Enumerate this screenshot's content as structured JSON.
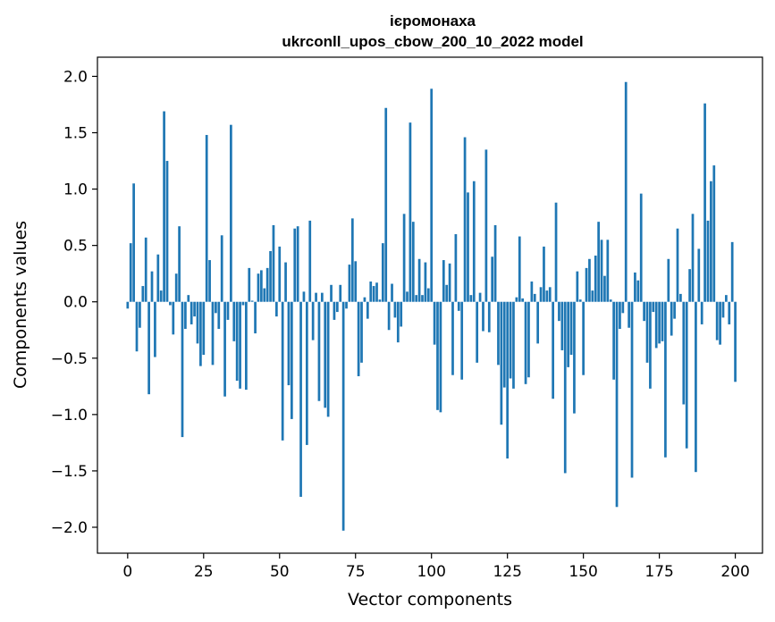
{
  "chart_data": {
    "type": "bar",
    "title": "ієромонаха",
    "subtitle": "ukrconll_upos_cbow_200_10_2022 model",
    "xlabel": "Vector components",
    "ylabel": "Components values",
    "xlim": [
      -9.95,
      208.95
    ],
    "ylim": [
      -2.23,
      2.17
    ],
    "xticks": [
      0,
      25,
      50,
      75,
      100,
      125,
      150,
      175,
      200
    ],
    "xtick_labels": [
      "0",
      "25",
      "50",
      "75",
      "100",
      "125",
      "150",
      "175",
      "200"
    ],
    "yticks": [
      -2.0,
      -1.5,
      -1.0,
      -0.5,
      0.0,
      0.5,
      1.0,
      1.5,
      2.0
    ],
    "ytick_labels": [
      "−2.0",
      "−1.5",
      "−1.0",
      "−0.5",
      "0.0",
      "0.5",
      "1.0",
      "1.5",
      "2.0"
    ],
    "grid": false,
    "bar_color": "#1f77b4",
    "values": [
      -0.06,
      0.52,
      1.05,
      -0.44,
      -0.23,
      0.14,
      0.57,
      -0.82,
      0.27,
      -0.49,
      0.42,
      0.1,
      1.69,
      1.25,
      -0.03,
      -0.29,
      0.25,
      0.67,
      -1.2,
      -0.24,
      0.06,
      -0.2,
      -0.13,
      -0.37,
      -0.57,
      -0.47,
      1.48,
      0.37,
      -0.56,
      -0.1,
      -0.24,
      0.59,
      -0.84,
      -0.16,
      1.57,
      -0.35,
      -0.7,
      -0.77,
      -0.03,
      -0.78,
      0.3,
      0.01,
      -0.28,
      0.25,
      0.28,
      0.12,
      0.3,
      0.45,
      0.68,
      -0.13,
      0.49,
      -1.23,
      0.35,
      -0.74,
      -1.04,
      0.65,
      0.67,
      -1.73,
      0.09,
      -1.27,
      0.72,
      -0.34,
      0.08,
      -0.88,
      0.08,
      -0.94,
      -1.02,
      0.15,
      -0.16,
      -0.09,
      0.15,
      -2.03,
      -0.06,
      0.33,
      0.74,
      0.36,
      -0.66,
      -0.54,
      0.04,
      -0.15,
      0.18,
      0.14,
      0.17,
      0.02,
      0.52,
      1.72,
      -0.25,
      0.16,
      -0.14,
      -0.36,
      -0.22,
      0.78,
      0.09,
      1.59,
      0.71,
      0.06,
      0.38,
      0.06,
      0.35,
      0.12,
      1.89,
      -0.38,
      -0.96,
      -0.98,
      0.37,
      0.15,
      0.34,
      -0.65,
      0.6,
      -0.08,
      -0.69,
      1.46,
      0.97,
      0.06,
      1.07,
      -0.54,
      0.08,
      -0.26,
      1.35,
      -0.27,
      0.4,
      0.68,
      -0.56,
      -1.09,
      -0.76,
      -1.39,
      -0.68,
      -0.77,
      0.04,
      0.58,
      0.03,
      -0.73,
      -0.67,
      0.18,
      0.07,
      -0.37,
      0.13,
      0.49,
      0.1,
      0.13,
      -0.86,
      0.88,
      -0.17,
      -0.43,
      -1.52,
      -0.58,
      -0.47,
      -0.99,
      0.27,
      0.02,
      -0.65,
      0.3,
      0.38,
      0.1,
      0.41,
      0.71,
      0.55,
      0.23,
      0.55,
      0.02,
      -0.69,
      -1.82,
      -0.24,
      -0.1,
      1.95,
      -0.23,
      -1.56,
      0.26,
      0.19,
      0.96,
      -0.17,
      -0.54,
      -0.77,
      -0.09,
      -0.41,
      -0.37,
      -0.35,
      -1.38,
      0.38,
      -0.3,
      -0.15,
      0.65,
      0.07,
      -0.91,
      -1.3,
      0.29,
      0.78,
      -1.51,
      0.47,
      -0.2,
      1.76,
      0.72,
      1.07,
      1.21,
      -0.34,
      -0.38,
      -0.14,
      0.06,
      -0.2,
      0.53,
      -0.71
    ]
  }
}
